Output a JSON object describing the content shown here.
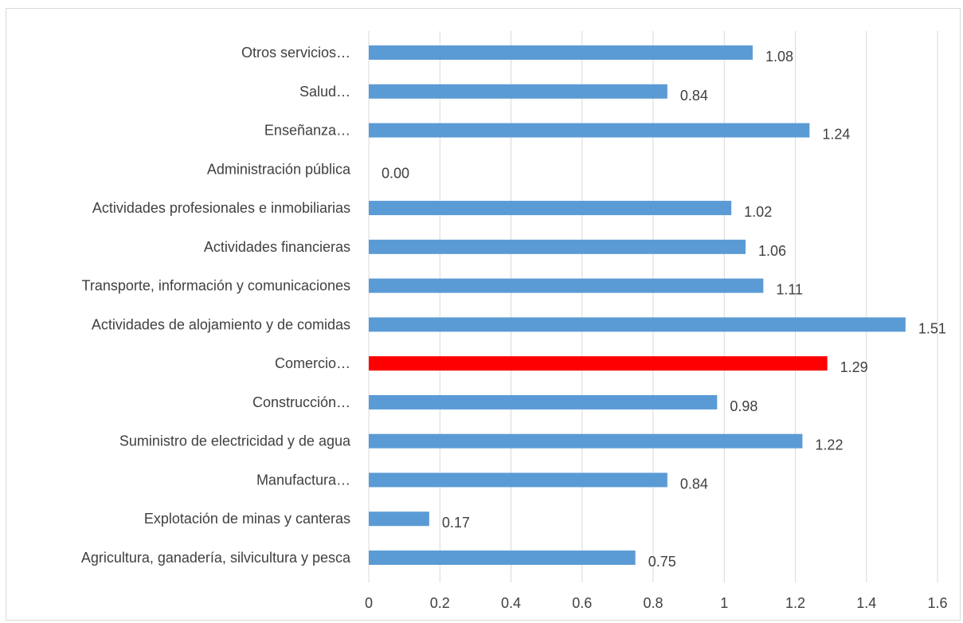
{
  "chart_data": {
    "type": "bar",
    "orientation": "horizontal",
    "title": "",
    "xlabel": "",
    "ylabel": "",
    "xlim": [
      0,
      1.6
    ],
    "x_ticks": [
      "0",
      "0.2",
      "0.4",
      "0.6",
      "0.8",
      "1",
      "1.2",
      "1.4",
      "1.6"
    ],
    "x_tick_values": [
      0,
      0.2,
      0.4,
      0.6,
      0.8,
      1.0,
      1.2,
      1.4,
      1.6
    ],
    "grid": "vertical",
    "legend": "none",
    "colors": {
      "default": "#5b9bd5",
      "highlight": "#ff0000"
    },
    "categories": [
      "Agricultura, ganadería, silvicultura y pesca",
      "Explotación de minas y canteras",
      "Manufactura…",
      "Suministro de electricidad y de agua",
      "Construcción…",
      "Comercio…",
      "Actividades de alojamiento y de comidas",
      "Transporte, información y comunicaciones",
      "Actividades financieras",
      "Actividades profesionales e inmobiliarias",
      "Administración pública",
      "Enseñanza…",
      "Salud…",
      "Otros servicios…"
    ],
    "values": [
      0.75,
      0.17,
      0.84,
      1.22,
      0.98,
      1.29,
      1.51,
      1.11,
      1.06,
      1.02,
      0.0,
      1.24,
      0.84,
      1.08
    ],
    "value_labels": [
      "0.75",
      "0.17",
      "0.84",
      "1.22",
      "0.98",
      "1.29",
      "1.51",
      "1.11",
      "1.06",
      "1.02",
      "0.00",
      "1.24",
      "0.84",
      "1.08"
    ],
    "highlight_category": "Comercio…"
  }
}
